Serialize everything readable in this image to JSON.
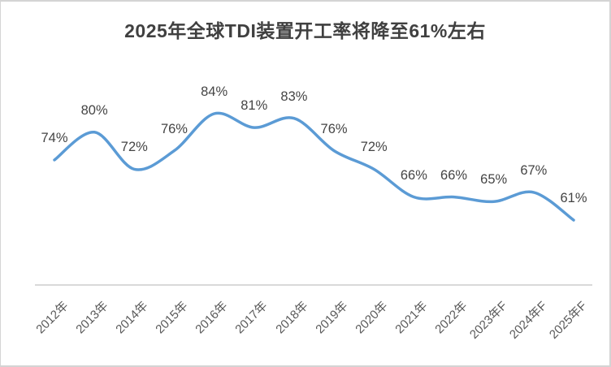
{
  "colors": {
    "line": "#5B9BD5",
    "title_text": "#404040",
    "data_label_text": "#444444",
    "tick_text": "#595959",
    "axis_line": "#d9d9d9",
    "frame_border": "#d4d4d4"
  },
  "chart_data": {
    "type": "line",
    "title": "2025年全球TDI装置开工率将降至61%左右",
    "categories": [
      "2012年",
      "2013年",
      "2014年",
      "2015年",
      "2016年",
      "2017年",
      "2018年",
      "2019年",
      "2020年",
      "2021年",
      "2022年",
      "2023年F",
      "2024年F",
      "2025年F"
    ],
    "values": [
      74,
      80,
      72,
      76,
      84,
      81,
      83,
      76,
      72,
      66,
      66,
      65,
      67,
      61
    ],
    "data_labels": [
      "74%",
      "80%",
      "72%",
      "76%",
      "84%",
      "81%",
      "83%",
      "76%",
      "72%",
      "66%",
      "66%",
      "65%",
      "67%",
      "61%"
    ],
    "unit": "%",
    "xlabel": "",
    "ylabel": "",
    "ylim": [
      55,
      90
    ],
    "grid": false,
    "legend": "none",
    "smooth": true,
    "x_tick_rotation_deg": -45
  }
}
